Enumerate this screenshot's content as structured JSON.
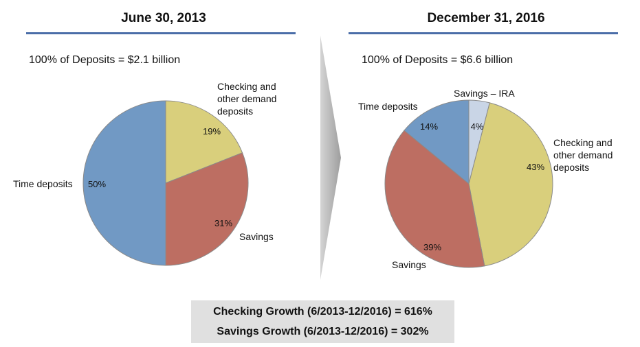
{
  "summary": {
    "checking_growth": "Checking Growth (6/2013-12/2016) = 616%",
    "savings_growth": "Savings Growth (6/2013-12/2016) = 302%"
  },
  "chart_data": [
    {
      "type": "pie",
      "title": "June 30, 2013",
      "subtitle": "100% of Deposits = $2.1 billion",
      "slices": [
        {
          "label": "Checking and other demand deposits",
          "label_lines": [
            "Checking and",
            "other demand",
            "deposits"
          ],
          "value": 19,
          "value_label": "19%",
          "color": "#d9cf7c"
        },
        {
          "label": "Savings",
          "label_lines": [
            "Savings"
          ],
          "value": 31,
          "value_label": "31%",
          "color": "#bd6e62"
        },
        {
          "label": "Time deposits",
          "label_lines": [
            "Time deposits"
          ],
          "value": 50,
          "value_label": "50%",
          "color": "#7199c4"
        }
      ]
    },
    {
      "type": "pie",
      "title": "December 31, 2016",
      "subtitle": "100% of Deposits = $6.6 billion",
      "slices": [
        {
          "label": "Savings – IRA",
          "label_lines": [
            "Savings – IRA"
          ],
          "value": 4,
          "value_label": "4%",
          "color": "#c9d5e6"
        },
        {
          "label": "Checking and other demand deposits",
          "label_lines": [
            "Checking and",
            "other demand",
            "deposits"
          ],
          "value": 43,
          "value_label": "43%",
          "color": "#d9cf7c"
        },
        {
          "label": "Savings",
          "label_lines": [
            "Savings"
          ],
          "value": 39,
          "value_label": "39%",
          "color": "#bd6e62"
        },
        {
          "label": "Time deposits",
          "label_lines": [
            "Time deposits"
          ],
          "value": 14,
          "value_label": "14%",
          "color": "#7199c4"
        }
      ]
    }
  ]
}
